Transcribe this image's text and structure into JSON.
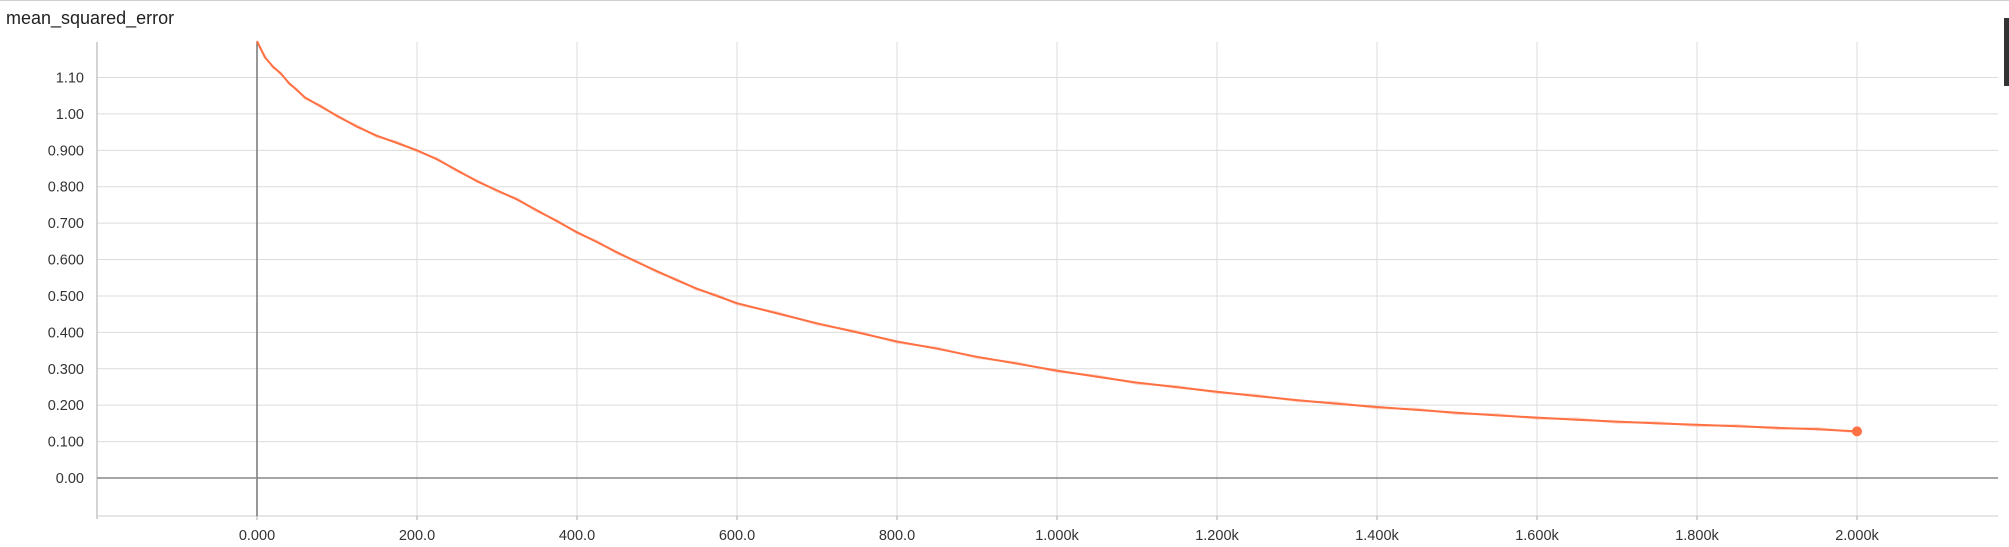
{
  "panel": {
    "title": "mean_squared_error"
  },
  "chart_data": {
    "type": "line",
    "title": "mean_squared_error",
    "xlabel": "",
    "ylabel": "",
    "grid": true,
    "xlim": [
      -200,
      2180
    ],
    "ylim": [
      -0.1,
      1.2
    ],
    "x_ticks": [
      0,
      200,
      400,
      600,
      800,
      1000,
      1200,
      1400,
      1600,
      1800,
      2000
    ],
    "x_tick_labels": [
      "0.000",
      "200.0",
      "400.0",
      "600.0",
      "800.0",
      "1.000k",
      "1.200k",
      "1.400k",
      "1.600k",
      "1.800k",
      "2.000k"
    ],
    "y_ticks": [
      0,
      0.1,
      0.2,
      0.3,
      0.4,
      0.5,
      0.6,
      0.7,
      0.8,
      0.9,
      1.0,
      1.1
    ],
    "y_tick_labels": [
      "0.00",
      "0.100",
      "0.200",
      "0.300",
      "0.400",
      "0.500",
      "0.600",
      "0.700",
      "0.800",
      "0.900",
      "1.00",
      "1.10"
    ],
    "series": [
      {
        "color": "#ff7043",
        "end_marker": true,
        "x": [
          0,
          10,
          20,
          30,
          40,
          50,
          60,
          80,
          100,
          125,
          150,
          175,
          200,
          225,
          250,
          275,
          300,
          325,
          350,
          375,
          400,
          425,
          450,
          475,
          500,
          525,
          550,
          575,
          600,
          650,
          700,
          750,
          800,
          850,
          900,
          950,
          1000,
          1050,
          1100,
          1150,
          1200,
          1250,
          1300,
          1350,
          1400,
          1450,
          1500,
          1550,
          1600,
          1650,
          1700,
          1750,
          1800,
          1850,
          1900,
          1950,
          2000
        ],
        "y": [
          1.2,
          1.155,
          1.13,
          1.11,
          1.085,
          1.065,
          1.045,
          1.02,
          0.995,
          0.965,
          0.94,
          0.92,
          0.9,
          0.875,
          0.845,
          0.815,
          0.79,
          0.765,
          0.735,
          0.705,
          0.675,
          0.648,
          0.62,
          0.593,
          0.568,
          0.543,
          0.52,
          0.5,
          0.48,
          0.452,
          0.425,
          0.4,
          0.375,
          0.355,
          0.333,
          0.314,
          0.295,
          0.278,
          0.262,
          0.249,
          0.237,
          0.225,
          0.214,
          0.204,
          0.195,
          0.187,
          0.179,
          0.172,
          0.166,
          0.16,
          0.155,
          0.15,
          0.146,
          0.142,
          0.138,
          0.134,
          0.128
        ]
      }
    ]
  }
}
